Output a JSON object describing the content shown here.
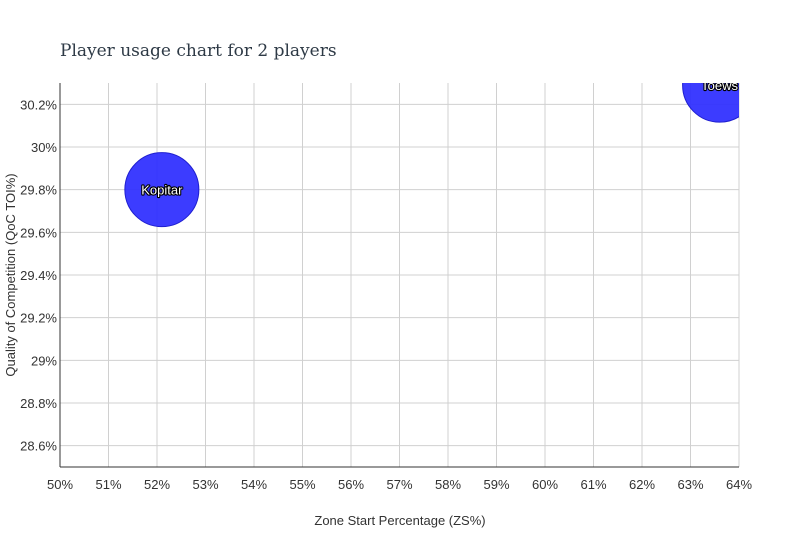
{
  "chart_data": {
    "type": "scatter",
    "title": "Player usage chart for 2 players",
    "xlabel": "Zone Start Percentage (ZS%)",
    "ylabel": "Quality of Competition (QoC TOI%)",
    "xlim": [
      50,
      64
    ],
    "ylim": [
      28.5,
      30.3
    ],
    "x_ticks": [
      50,
      51,
      52,
      53,
      54,
      55,
      56,
      57,
      58,
      59,
      60,
      61,
      62,
      63,
      64
    ],
    "x_tick_labels": [
      "50%",
      "51%",
      "52%",
      "53%",
      "54%",
      "55%",
      "56%",
      "57%",
      "58%",
      "59%",
      "60%",
      "61%",
      "62%",
      "63%",
      "64%"
    ],
    "y_ticks": [
      28.6,
      28.8,
      29.0,
      29.2,
      29.4,
      29.6,
      29.8,
      30.0,
      30.2
    ],
    "y_tick_labels": [
      "28.6%",
      "28.8%",
      "29%",
      "29.2%",
      "29.4%",
      "29.6%",
      "29.8%",
      "30%",
      "30.2%"
    ],
    "grid": true,
    "bubble_color": "#2b2bff",
    "points": [
      {
        "label": "Kopitar",
        "x": 52.1,
        "y": 29.8
      },
      {
        "label": "Toews",
        "x": 63.6,
        "y": 30.29
      }
    ]
  }
}
